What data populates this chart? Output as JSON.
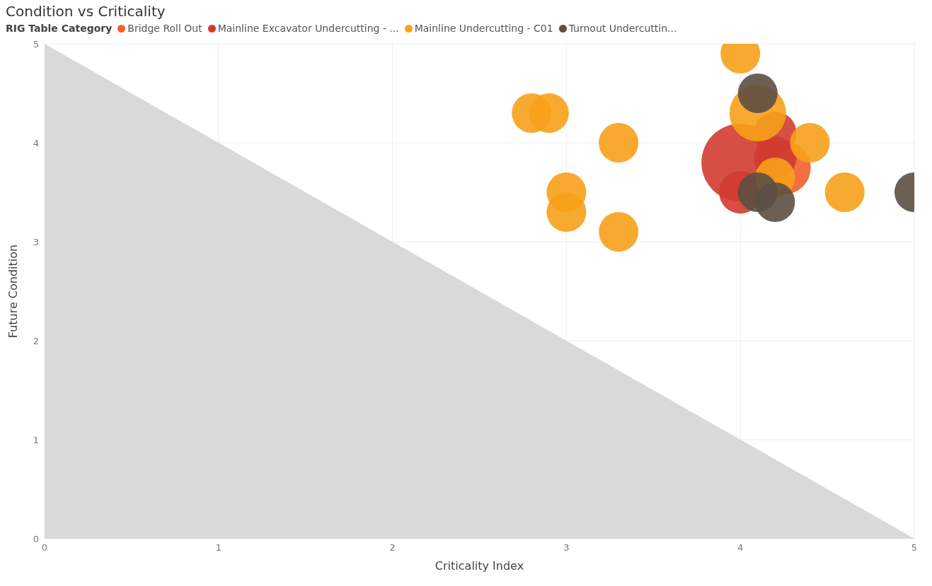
{
  "chart_data": {
    "type": "bubble",
    "title": "Condition vs Criticality",
    "xlabel": "Criticality Index",
    "ylabel": "Future Condition",
    "legend_title": "RIG Table Category",
    "legend": "top left",
    "grid": true,
    "xlim": [
      0,
      5
    ],
    "ylim": [
      0,
      5
    ],
    "xticks": [
      0,
      1,
      2,
      3,
      4,
      5
    ],
    "yticks": [
      0,
      1,
      2,
      3,
      4,
      5
    ],
    "series": [
      {
        "type": "area",
        "color": "#d9d9d9",
        "x": [
          0,
          5
        ],
        "values": [
          5,
          0
        ]
      },
      {
        "name": "Bridge Roll Out",
        "color": "#f0612f",
        "x": [
          4.25
        ],
        "values": [
          3.75
        ],
        "sizes": [
          0.48
        ]
      },
      {
        "name": "Mainline Excavator Undercutting - ...",
        "color": "#d13b30",
        "x": [
          4.0,
          4.2,
          4.2,
          4.0
        ],
        "values": [
          3.8,
          4.1,
          3.85,
          3.5
        ],
        "sizes": [
          1,
          0.3,
          0.3,
          0.3
        ]
      },
      {
        "name": "Mainline Undercutting - C01",
        "color": "#f7a11a",
        "x": [
          2.8,
          2.9,
          3.3,
          3.0,
          3.0,
          3.3,
          4.0,
          4.1,
          4.4,
          4.2,
          4.6
        ],
        "values": [
          4.3,
          4.3,
          4.0,
          3.5,
          3.3,
          3.1,
          4.9,
          4.3,
          4.0,
          3.65,
          3.5
        ],
        "sizes": [
          0.26,
          0.26,
          0.26,
          0.26,
          0.26,
          0.26,
          0.26,
          0.53,
          0.26,
          0.26,
          0.26
        ]
      },
      {
        "name": "Turnout Undercuttin...",
        "color": "#5c4f43",
        "x": [
          4.1,
          4.1,
          4.2,
          5.0
        ],
        "values": [
          4.5,
          3.5,
          3.4,
          3.5
        ],
        "sizes": [
          0.26,
          0.26,
          0.26,
          0.26
        ]
      }
    ]
  }
}
